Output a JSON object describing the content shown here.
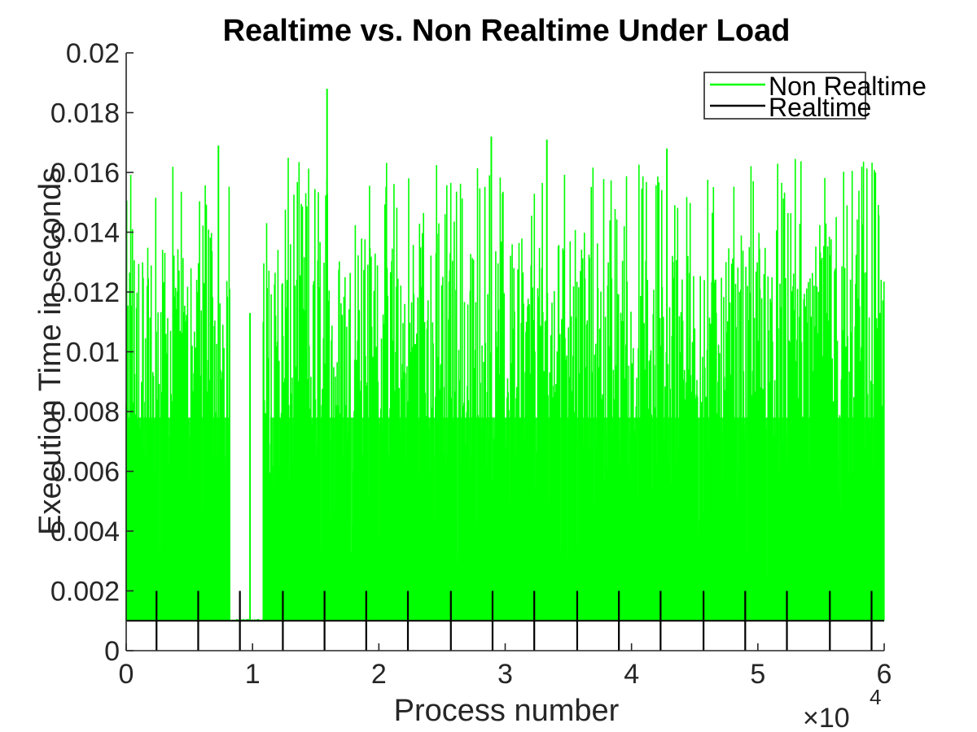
{
  "chart_data": {
    "type": "line",
    "title": "Realtime vs. Non Realtime Under Load",
    "xlabel": "Process number",
    "ylabel": "Execution Time in seconds",
    "xlim": [
      0,
      60000
    ],
    "ylim": [
      0,
      0.02
    ],
    "x_ticks": [
      0,
      1,
      2,
      3,
      4,
      5,
      6
    ],
    "x_tick_labels": [
      "0",
      "1",
      "2",
      "3",
      "4",
      "5",
      "6"
    ],
    "x_exponent_label": "×10",
    "x_exponent_power": "4",
    "y_ticks": [
      0,
      0.002,
      0.004,
      0.006,
      0.008,
      0.01,
      0.012,
      0.014,
      0.016,
      0.018,
      0.02
    ],
    "y_tick_labels": [
      "0",
      "0.002",
      "0.004",
      "0.006",
      "0.008",
      "0.01",
      "0.012",
      "0.014",
      "0.016",
      "0.018",
      "0.02"
    ],
    "grid": false,
    "legend_position": "top-right",
    "series": [
      {
        "name": "Non Realtime",
        "color": "#00ff00",
        "baseline": 0.001,
        "gap_x": [
          8200,
          10800
        ],
        "notable_peaks": [
          {
            "x": 15900,
            "y": 0.0188
          },
          {
            "x": 7300,
            "y": 0.0169
          },
          {
            "x": 28900,
            "y": 0.0172
          },
          {
            "x": 33300,
            "y": 0.0171
          },
          {
            "x": 42800,
            "y": 0.0168
          },
          {
            "x": 59300,
            "y": 0.016
          },
          {
            "x": 9800,
            "y": 0.0113
          }
        ]
      },
      {
        "name": "Realtime",
        "color": "#000000",
        "baseline": 0.001,
        "spike_x": [
          2400,
          5700,
          9000,
          12400,
          15700,
          19000,
          22300,
          25700,
          29000,
          32300,
          35700,
          39000,
          42300,
          45700,
          49000,
          52300,
          55700,
          59000
        ],
        "spike_y": 0.002
      }
    ]
  }
}
